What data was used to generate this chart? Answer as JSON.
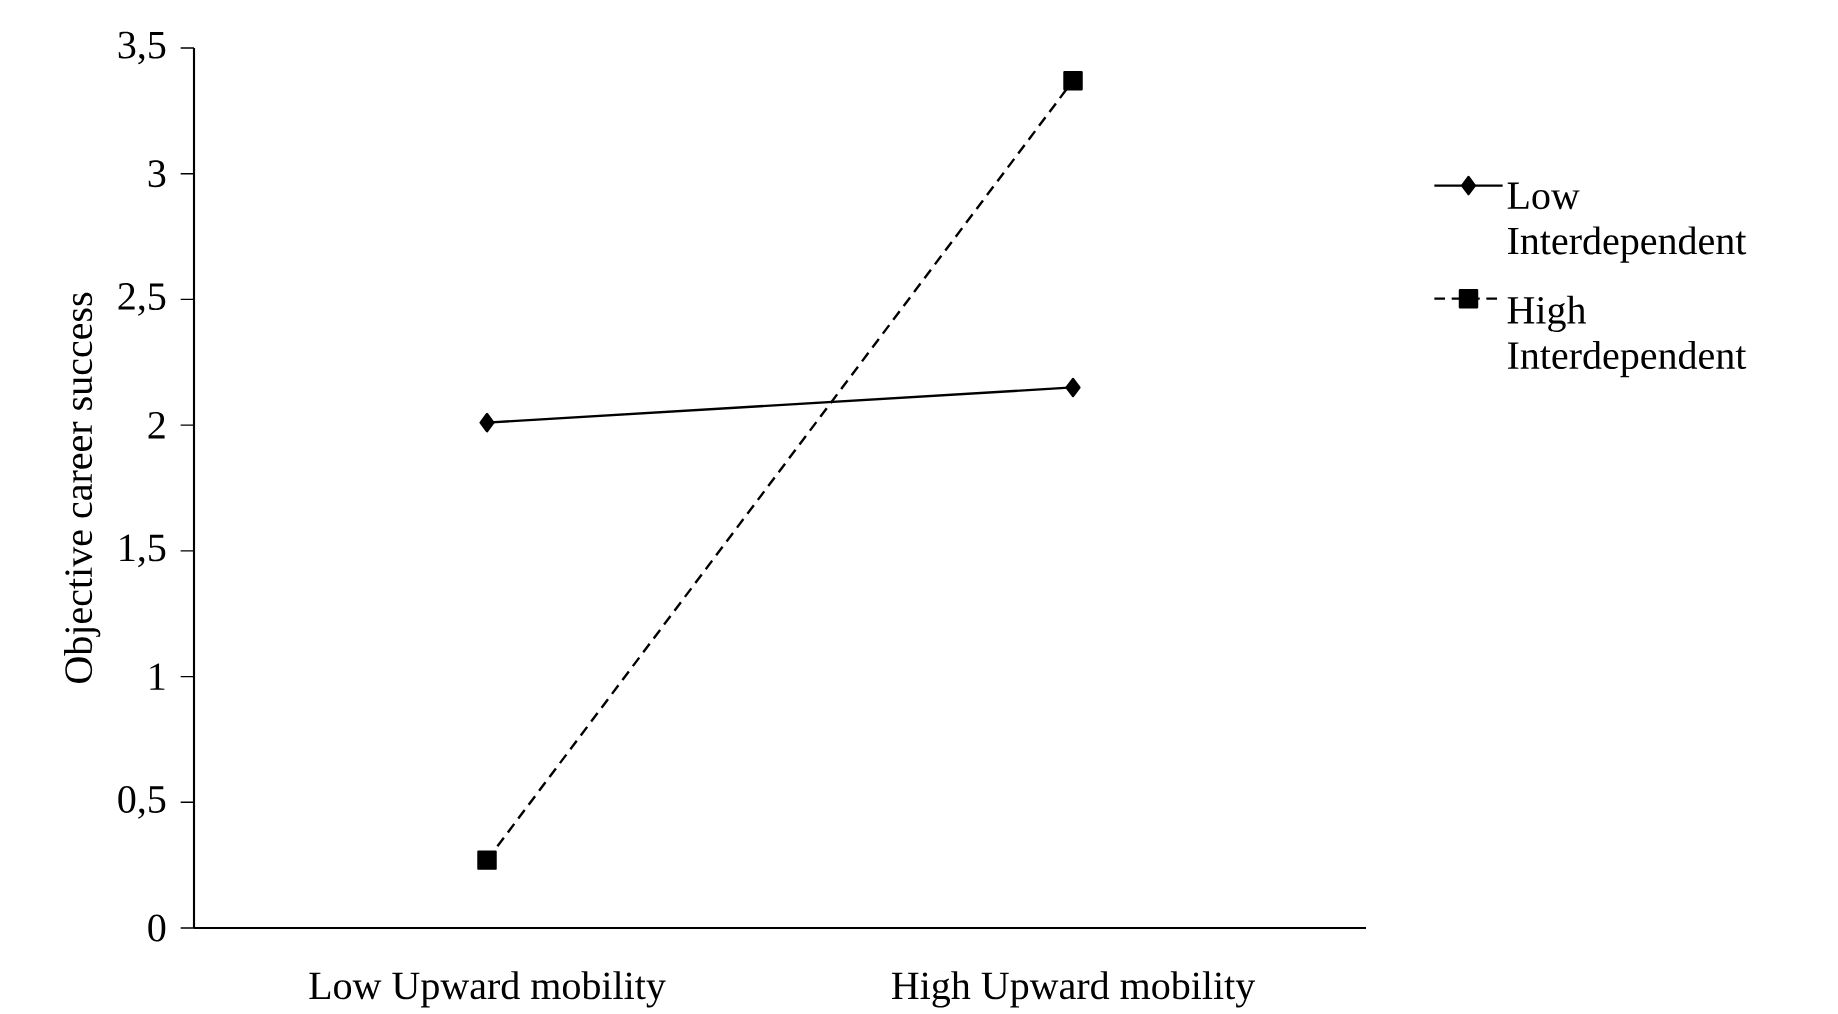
{
  "chart_data": {
    "type": "line",
    "ylabel": "Objective career success",
    "categories": [
      "Low Upward mobility",
      "High Upward mobility"
    ],
    "series": [
      {
        "name": "Low Interdependent",
        "color": "#000000",
        "marker": "diamond",
        "line_style": "solid",
        "values": [
          2.01,
          2.15
        ]
      },
      {
        "name": "High Interdependent",
        "color": "#000000",
        "marker": "square",
        "line_style": "dashed",
        "values": [
          0.27,
          3.37
        ]
      }
    ],
    "ylim": [
      0,
      3.5
    ],
    "yticks": [
      0,
      {
        "value": 0.5,
        "label": "0,5"
      },
      1,
      {
        "value": 1.5,
        "label": "1,5"
      },
      2,
      {
        "value": 2.5,
        "label": "2,5"
      },
      3,
      {
        "value": 3.5,
        "label": "3,5"
      }
    ],
    "grid": false,
    "legend": "right"
  }
}
